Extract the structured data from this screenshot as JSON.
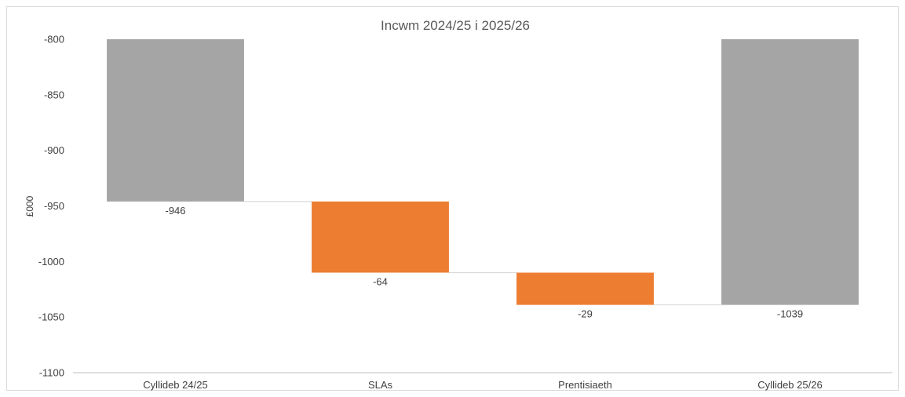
{
  "chart_data": {
    "type": "bar",
    "subtype": "waterfall",
    "title": "Incwm 2024/25 i 2025/26",
    "ylabel": "£000",
    "xlabel": "",
    "ylim": [
      -1100,
      -800
    ],
    "yticks": [
      -800,
      -850,
      -900,
      -950,
      -1000,
      -1050,
      -1100
    ],
    "grid": false,
    "legend": "none",
    "categories": [
      "Cyllideb 24/25",
      "SLAs",
      "Prentisiaeth",
      "Cyllideb 25/26"
    ],
    "values": [
      -946,
      -64,
      -29,
      -1039
    ],
    "data_labels": [
      "-946",
      "-64",
      "-29",
      "-1039"
    ],
    "bar_kinds": [
      "total",
      "change",
      "change",
      "total"
    ],
    "colors": {
      "total": "#a5a5a5",
      "change": "#ed7d31",
      "connector": "#d9d9d9",
      "axis": "#bfbfbf",
      "text": "#404040",
      "title": "#595959"
    }
  }
}
